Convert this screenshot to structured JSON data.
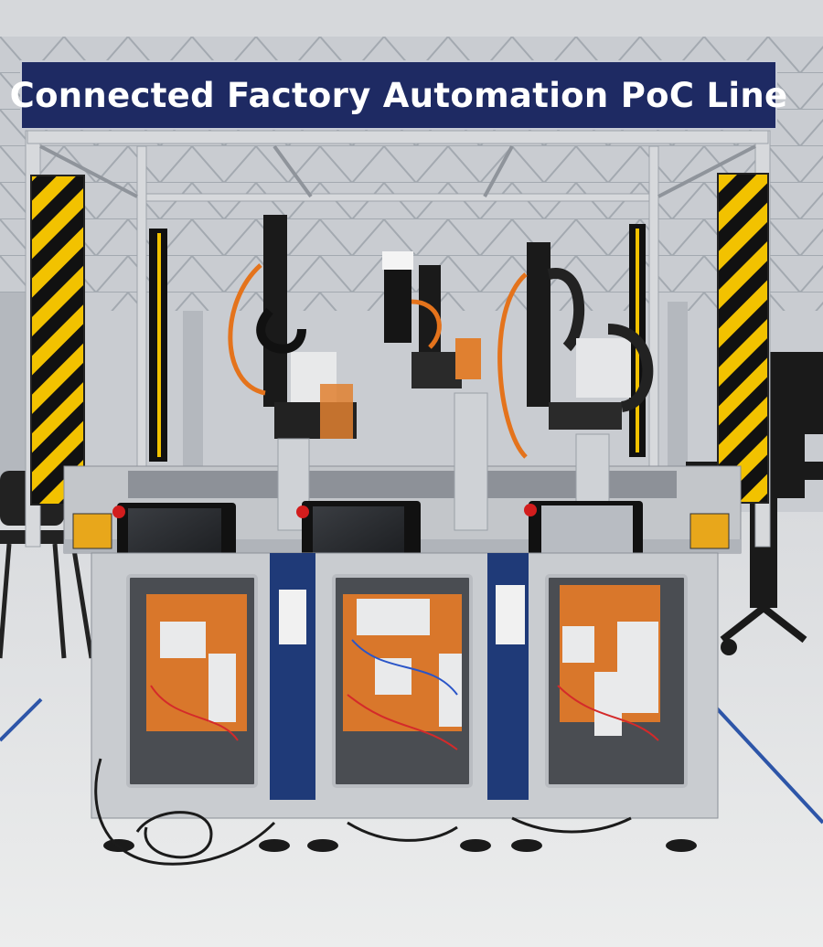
{
  "banner": {
    "title": "Connected Factory Automation PoC Line"
  },
  "colors": {
    "banner_bg": "#1e2a63",
    "banner_text": "#ffffff",
    "hazard_yellow": "#f2c200",
    "hazard_black": "#111111",
    "cabinet_blue": "#1f3a78",
    "panel_orange": "#d9772b",
    "floor": "#e4e5e7",
    "floor_line": "#2d55a8"
  }
}
